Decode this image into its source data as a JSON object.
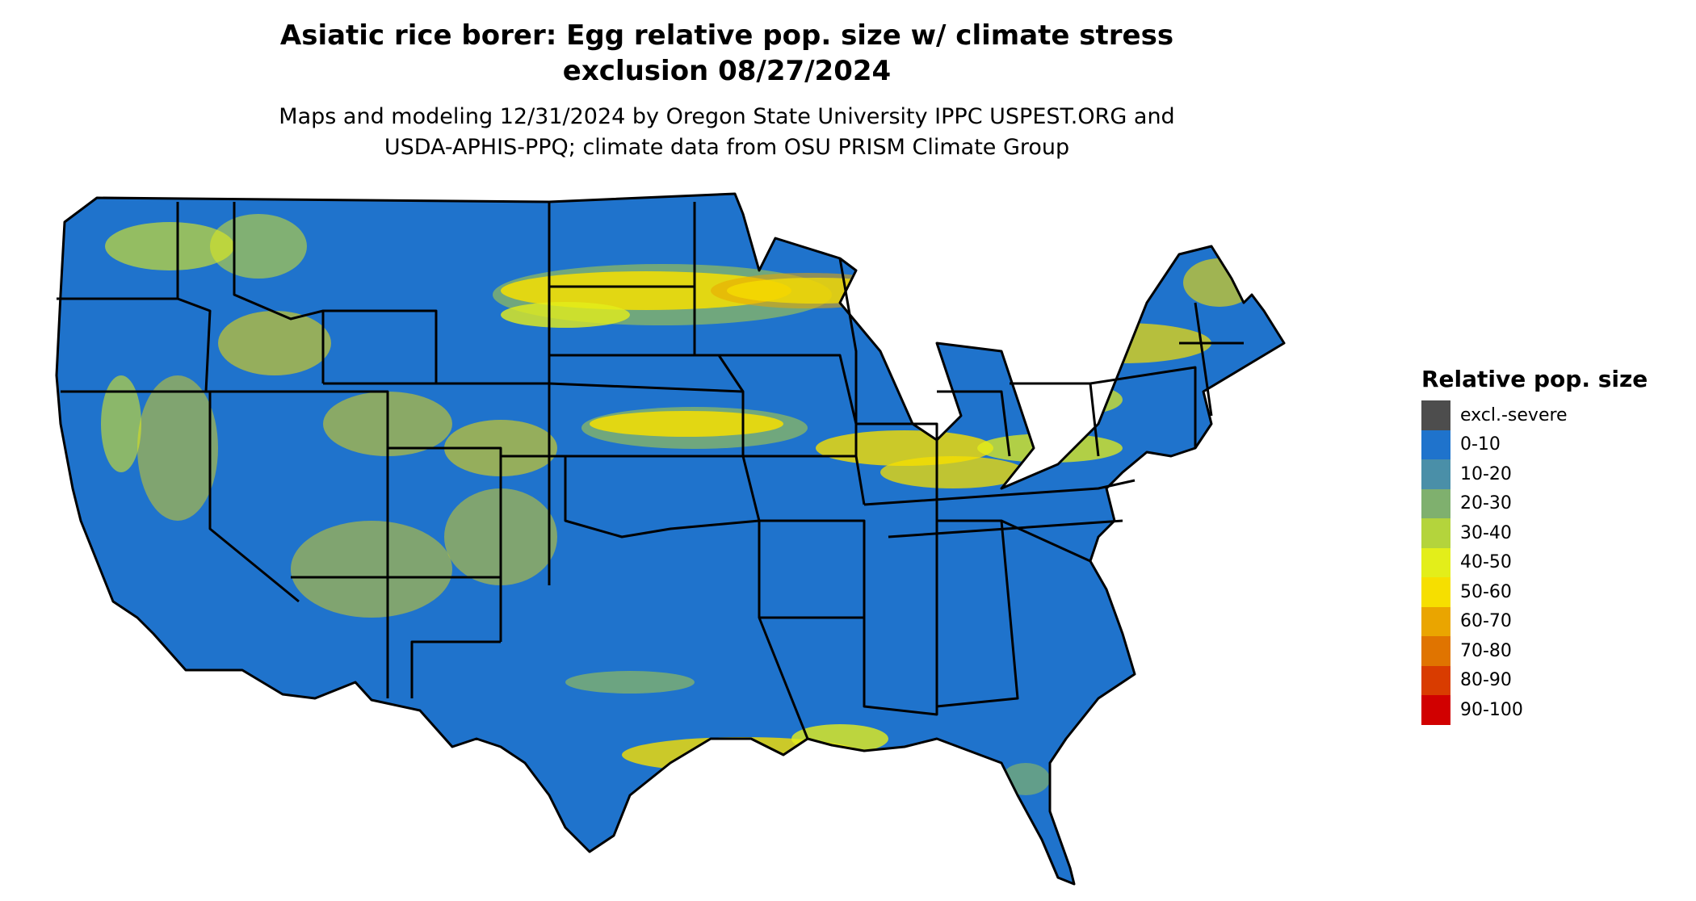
{
  "title": {
    "line1": "Asiatic rice borer: Egg relative pop. size w/ climate stress",
    "line2": "exclusion 08/27/2024"
  },
  "subtitle": {
    "line1": "Maps and modeling 12/31/2024 by Oregon State University IPPC USPEST.ORG and",
    "line2": "USDA-APHIS-PPQ; climate data from OSU PRISM Climate Group"
  },
  "legend": {
    "title": "Relative pop. size",
    "items": [
      {
        "label": "excl.-severe",
        "color": "#4d4d4d"
      },
      {
        "label": "0-10",
        "color": "#1f73cc"
      },
      {
        "label": "10-20",
        "color": "#4a8fa8"
      },
      {
        "label": "20-30",
        "color": "#7fb06e"
      },
      {
        "label": "30-40",
        "color": "#b4d43c"
      },
      {
        "label": "40-50",
        "color": "#e3ee1a"
      },
      {
        "label": "50-60",
        "color": "#f6df00"
      },
      {
        "label": "60-70",
        "color": "#eaa500"
      },
      {
        "label": "70-80",
        "color": "#e07400"
      },
      {
        "label": "80-90",
        "color": "#d93c00"
      },
      {
        "label": "90-100",
        "color": "#d10000"
      }
    ]
  },
  "map": {
    "region": "contiguous-united-states",
    "base_color": "#1f73cc",
    "border_color": "#000000"
  }
}
